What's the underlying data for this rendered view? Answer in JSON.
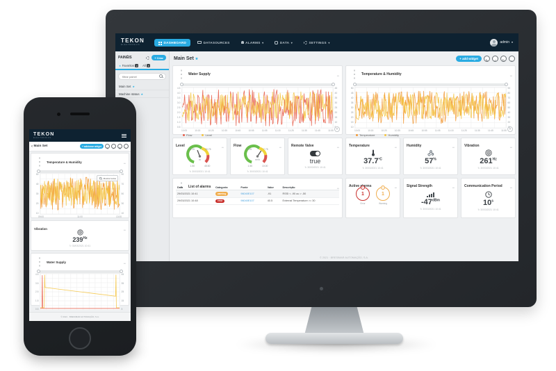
{
  "brand": {
    "logo_text": "TEKON",
    "logo_sub": "ELECTRONICS"
  },
  "desktop": {
    "navbar": {
      "items": [
        {
          "label": "DASHBOARD",
          "active": true
        },
        {
          "label": "DATASOURCES",
          "active": false
        },
        {
          "label": "ALARMS",
          "active": false
        },
        {
          "label": "DATA",
          "active": false
        },
        {
          "label": "SETTINGS",
          "active": false
        }
      ],
      "user": "admin"
    },
    "sidebar": {
      "title": "PAINÉIS",
      "create_label": "+ Criar",
      "tabs": [
        {
          "label": "Favoritos",
          "count": "2"
        },
        {
          "label": "All",
          "count": "4"
        }
      ],
      "search_placeholder": "filtrar painel",
      "items": [
        {
          "label": "Main Set"
        },
        {
          "label": "Machine status"
        }
      ]
    },
    "header": {
      "title": "Main Set",
      "add_widget": "+ add widget"
    },
    "widgets": {
      "water_supply": {
        "title": "Water Supply"
      },
      "temp_humidity": {
        "title": "Temperature & Humidity"
      },
      "level": {
        "title": "Level",
        "min": "1.50",
        "low": "16.25",
        "high": "30.75",
        "max": "45.50",
        "unit": "m",
        "min_num": 1.5,
        "max_num": 45.5,
        "value_num": 20,
        "timestamp": "30/03/2021 10:41"
      },
      "flow": {
        "title": "Flow",
        "min": "1.50",
        "low": "5.25",
        "high": "7.75",
        "max": "10.00",
        "unit": "m³/h",
        "min_num": 1.5,
        "max_num": 10,
        "value_num": 6.8,
        "timestamp": "30/03/2021 10:41"
      },
      "remote_valve": {
        "title": "Remote Valve",
        "value": "true",
        "icon": "toggle-icon",
        "timestamp": "30/03/2021 10:41"
      },
      "temperature": {
        "title": "Temperature",
        "value": "37.7",
        "unit": "ºC",
        "icon": "thermometer-icon",
        "timestamp": "30/03/2021 10:41"
      },
      "humidity": {
        "title": "Humidity",
        "value": "57",
        "unit": "%",
        "icon": "humidity-icon",
        "timestamp": "30/03/2021 10:41"
      },
      "vibration": {
        "title": "Vibration",
        "value": "261",
        "unit": "Hz",
        "icon": "vibration-icon",
        "timestamp": "30/03/2021 10:41"
      },
      "alarms": {
        "title": "List of alarms",
        "columns": [
          "Data",
          "Categoria",
          "Fonte",
          "Valor",
          "Descrição"
        ],
        "rows": [
          {
            "date": "29/03/2021 10:41",
            "category": "warning",
            "source": "96040E107",
            "value": "-91",
            "description": "RSSI < -90 ou > -50"
          },
          {
            "date": "29/03/2021 10:48",
            "category": "error",
            "source": "96040E107",
            "value": "40.5",
            "description": "External Temperature >= 30"
          }
        ]
      },
      "active_alarms": {
        "title": "Active alarms",
        "error_count": "1",
        "warning_count": "1",
        "error_label": "Error",
        "warning_label": "Warning"
      },
      "signal": {
        "title": "Signal Strength",
        "value": "-47",
        "unit": "dBm",
        "icon": "signal-bars-icon",
        "timestamp": "30/03/2021 10:41"
      },
      "comm": {
        "title": "Communication Period",
        "value": "10",
        "unit": "s",
        "icon": "clock-icon",
        "timestamp": "30/03/2021 10:41"
      }
    },
    "footer": "© 2021 · BRESIMAR AUTOMAÇÃO, S.A."
  },
  "phone": {
    "header": {
      "title": "Main Set",
      "add_widget": "+ adicionar widget"
    },
    "widgets": {
      "temp_humidity": {
        "title": "Temperature & Humidity",
        "show_all": "Mostrar todos"
      },
      "vibration": {
        "title": "Vibration",
        "value": "239",
        "unit": "Hz",
        "icon": "vibration-icon",
        "timestamp": "30/03/2021 10:41"
      },
      "water_supply": {
        "title": "Water Supply"
      }
    },
    "footer": "© 2021 · BRESIMAR AUTOMAÇÃO, S.A."
  },
  "chart_data": [
    {
      "id": "ws-desktop",
      "type": "line",
      "title": "Water Supply",
      "xlabel": "",
      "ylabel": "",
      "grid": true,
      "legend_position": "bottom",
      "range_slider": true,
      "left_ticks": [
        "4.5",
        "4.0",
        "3.5",
        "3.0",
        "2.5",
        "2.0",
        "1.5",
        "1.0",
        "0.5"
      ],
      "right_ticks": [
        "45",
        "40",
        "35",
        "30",
        "25",
        "20",
        "15",
        "10",
        "5"
      ],
      "x_ticks": [
        "10:05",
        "10:15",
        "10:25",
        "10:35",
        "10:45",
        "10:55",
        "11:05",
        "11:15",
        "11:25",
        "11:35",
        "11:45",
        "11:55"
      ],
      "series": [
        {
          "name": "Flow",
          "color": "#e8604c",
          "noise": {
            "seed": 11,
            "points": 240,
            "min": 4,
            "max": 96
          }
        },
        {
          "name": "Level",
          "color": "#f5c542",
          "noise": {
            "seed": 29,
            "points": 240,
            "min": 16,
            "max": 90
          }
        }
      ]
    },
    {
      "id": "th-desktop",
      "type": "line",
      "title": "Temperature & Humidity",
      "xlabel": "",
      "ylabel": "",
      "grid": true,
      "legend_position": "bottom",
      "range_slider": true,
      "left_ticks": [
        "50",
        "45",
        "40",
        "35",
        "30",
        "25",
        "20",
        "15",
        "10"
      ],
      "right_ticks": [
        "90",
        "80",
        "70",
        "60",
        "50",
        "40",
        "30",
        "20",
        "10"
      ],
      "x_ticks": [
        "10:05",
        "10:15",
        "10:25",
        "10:35",
        "10:45",
        "10:55",
        "11:05",
        "11:15",
        "11:25",
        "11:35",
        "11:45",
        "11:55"
      ],
      "series": [
        {
          "name": "Temperature",
          "color": "#f29a38",
          "noise": {
            "seed": 7,
            "points": 240,
            "min": 10,
            "max": 92
          }
        },
        {
          "name": "Humidity",
          "color": "#f5c542",
          "noise": {
            "seed": 13,
            "points": 240,
            "min": 20,
            "max": 88
          }
        }
      ]
    },
    {
      "id": "th-phone",
      "type": "line",
      "title": "Temperature & Humidity",
      "xlabel": "",
      "ylabel": "",
      "grid": true,
      "legend_position": "bottom",
      "range_slider": true,
      "left_ticks": [
        "50",
        "40",
        "30",
        "20",
        "10"
      ],
      "right_ticks": [
        "90",
        "70",
        "50",
        "30",
        "10"
      ],
      "x_ticks": [
        "09:00",
        "11:00",
        "13:00"
      ],
      "series": [
        {
          "name": "Temperature",
          "color": "#f29a38",
          "noise": {
            "seed": 3,
            "points": 150,
            "min": 10,
            "max": 92
          }
        },
        {
          "name": "Humidity",
          "color": "#f5c542",
          "noise": {
            "seed": 5,
            "points": 150,
            "min": 20,
            "max": 88
          }
        }
      ]
    },
    {
      "id": "ws-phone",
      "type": "line",
      "title": "Water Supply",
      "xlabel": "",
      "ylabel": "",
      "grid": true,
      "legend_position": "none",
      "range_slider": true,
      "left_ticks": [
        "4.5",
        "3.5",
        "2.5",
        "1.5",
        "0.5"
      ],
      "right_ticks": [
        "45",
        "35",
        "25",
        "15",
        "5"
      ],
      "x_ticks": [],
      "series": [
        {
          "name": "Flow",
          "color": "#e8604c",
          "points": [
            [
              0,
              4
            ],
            [
              2,
              4
            ],
            [
              2.5,
              96
            ],
            [
              3,
              4
            ],
            [
              97,
              4
            ],
            [
              100,
              4
            ]
          ]
        },
        {
          "name": "Level",
          "color": "#f5c542",
          "points": [
            [
              0,
              6
            ],
            [
              5,
              6
            ],
            [
              5.5,
              97
            ],
            [
              6,
              62
            ],
            [
              50,
              50
            ],
            [
              95,
              38
            ],
            [
              95.5,
              97
            ],
            [
              96,
              6
            ],
            [
              100,
              6
            ]
          ]
        }
      ]
    }
  ]
}
